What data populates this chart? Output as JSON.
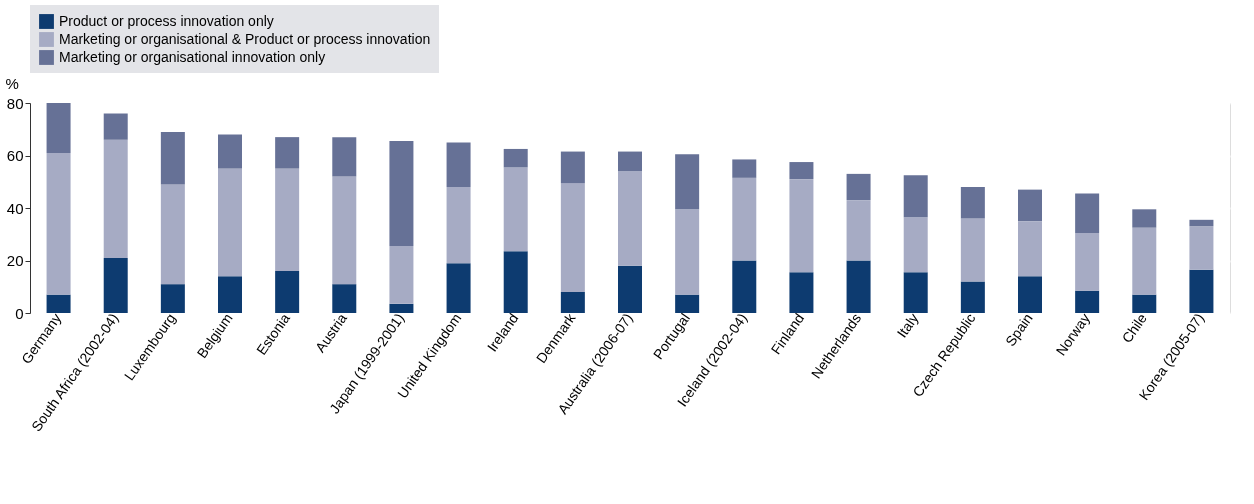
{
  "chart_data": {
    "type": "bar",
    "stacked": true,
    "ylabel": "%",
    "legend": "top",
    "grid": true,
    "categories": [
      "Germany",
      "South Africa (2002-04)",
      "Luxembourg",
      "Belgium",
      "Estonia",
      "Austria",
      "Japan (1999-2001)",
      "United Kingdom",
      "Ireland",
      "Denmark",
      "Australia (2006-07)",
      "Portugal",
      "Iceland (2002-04)",
      "Finland",
      "Netherlands",
      "Italy",
      "Czech Republic",
      "Spain",
      "Norway",
      "Chile",
      "Korea (2005-07)"
    ],
    "ylim": [
      0,
      80
    ],
    "yticks": [
      0,
      20,
      40,
      60,
      80
    ],
    "series": [
      {
        "name": "Product or process innovation only",
        "color": "#0d3b70",
        "values": [
          7,
          21,
          11,
          14,
          16,
          11,
          3.5,
          19,
          23.5,
          8,
          18,
          7,
          20,
          15.5,
          20,
          15.5,
          12,
          14,
          8.5,
          7,
          16.5
        ]
      },
      {
        "name": "Marketing or organisational & Product or process innovation",
        "color": "#a6abc4",
        "values": [
          54,
          45,
          38,
          41,
          39,
          41,
          22,
          29,
          32,
          41.5,
          36,
          32.5,
          31.5,
          35.5,
          23,
          21,
          24,
          21,
          22,
          25.5,
          16.5
        ]
      },
      {
        "name": "Marketing or organisational innovation only",
        "color": "#667196",
        "values": [
          19,
          10,
          20,
          13,
          12,
          15,
          40,
          17,
          7,
          12,
          7.5,
          21,
          7,
          6.5,
          10,
          16,
          12,
          12,
          15,
          7,
          2.5
        ]
      }
    ]
  }
}
